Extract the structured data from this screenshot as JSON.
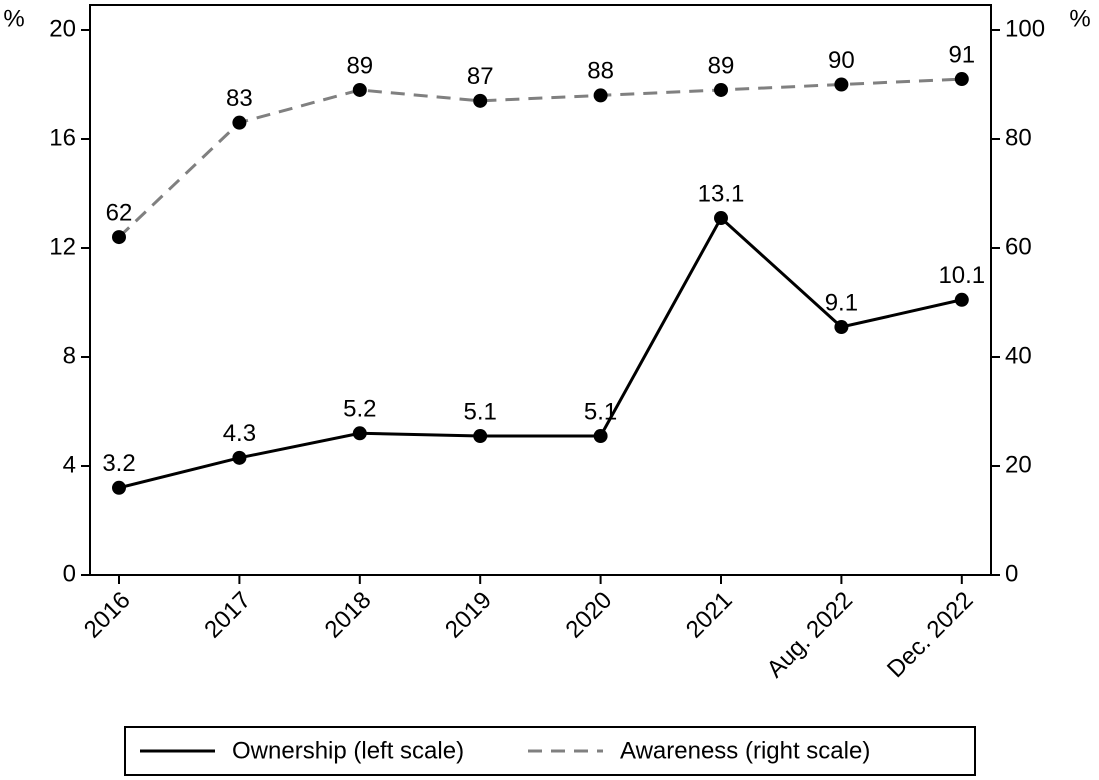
{
  "chart_data": {
    "type": "line",
    "ylabel": "%",
    "y2label": "%",
    "categories": [
      "2016",
      "2017",
      "2018",
      "2019",
      "2020",
      "2021",
      "Aug. 2022",
      "Dec. 2022"
    ],
    "series": [
      {
        "name": "Ownership (left scale)",
        "color": "#000000",
        "dash": false,
        "axis": "y",
        "values": [
          3.2,
          4.3,
          5.2,
          5.1,
          5.1,
          13.1,
          9.1,
          10.1
        ]
      },
      {
        "name": "Awareness (right scale)",
        "color": "#808080",
        "dash": true,
        "axis": "y2",
        "values": [
          62,
          83,
          89,
          87,
          88,
          89,
          90,
          91
        ]
      }
    ],
    "marker_color": "#000000",
    "ylim": [
      0,
      20
    ],
    "yticks": [
      0,
      4,
      8,
      12,
      16,
      20
    ],
    "y2lim": [
      0,
      100
    ],
    "y2ticks": [
      0,
      20,
      40,
      60,
      80,
      100
    ],
    "legend": "bottom",
    "grid": false
  }
}
